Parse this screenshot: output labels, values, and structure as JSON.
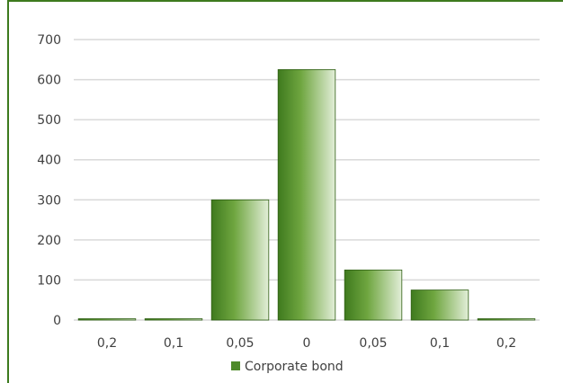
{
  "chart_data": {
    "type": "bar",
    "categories": [
      "0,2",
      "0,1",
      "0,05",
      "0",
      "0,05",
      "0,1",
      "0,2"
    ],
    "series": [
      {
        "name": "Corporate bond",
        "values": [
          2,
          2,
          300,
          625,
          125,
          75,
          2
        ],
        "color": "#4e8a2a"
      }
    ],
    "ylim": [
      0,
      700
    ],
    "yticks": [
      "0",
      "100",
      "200",
      "300",
      "400",
      "500",
      "600",
      "700"
    ],
    "grid": true,
    "legend": "bottom",
    "title": "",
    "xlabel": "",
    "ylabel": ""
  },
  "colors": {
    "frame": "#3d7a1e",
    "bar_dark": "#3f7a1e",
    "bar_mid": "#6fa640",
    "bar_light": "#d9e8cc",
    "grid": "#d9d9d9",
    "axis_text": "#404040"
  }
}
